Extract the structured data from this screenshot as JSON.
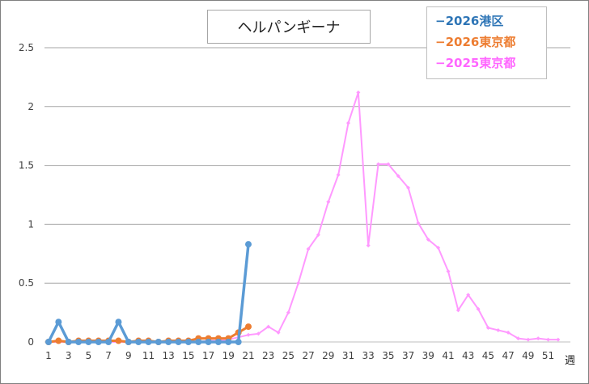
{
  "chart_data": {
    "type": "line",
    "title": "ヘルパンギーナ",
    "xlabel": "週",
    "ylabel": "",
    "ylim": [
      0,
      2.5
    ],
    "xlim": [
      1,
      52
    ],
    "yticks": [
      "0",
      "0.5",
      "1",
      "1.5",
      "2",
      "2.5"
    ],
    "xticks": [
      "1",
      "3",
      "5",
      "7",
      "9",
      "11",
      "13",
      "15",
      "17",
      "19",
      "21",
      "23",
      "25",
      "27",
      "29",
      "31",
      "33",
      "35",
      "37",
      "39",
      "41",
      "43",
      "45",
      "47",
      "49",
      "51"
    ],
    "grid": true,
    "legend_position": "top-right",
    "series": [
      {
        "name": "2026港区",
        "color": "#5b9bd5",
        "x": [
          1,
          2,
          3,
          4,
          5,
          6,
          7,
          8,
          9,
          10,
          11,
          12,
          13,
          14,
          15,
          16,
          17,
          18,
          19,
          20,
          21
        ],
        "values": [
          0,
          0.17,
          0,
          0,
          0,
          0,
          0,
          0.17,
          0,
          0,
          0,
          0,
          0,
          0,
          0,
          0,
          0,
          0,
          0,
          0,
          0.83
        ]
      },
      {
        "name": "2026東京都",
        "color": "#ed7d31",
        "x": [
          1,
          2,
          3,
          4,
          5,
          6,
          7,
          8,
          9,
          10,
          11,
          12,
          13,
          14,
          15,
          16,
          17,
          18,
          19,
          20,
          21
        ],
        "values": [
          0,
          0.01,
          0,
          0.01,
          0.01,
          0.01,
          0.01,
          0.01,
          0,
          0.01,
          0.01,
          0,
          0.01,
          0.01,
          0.01,
          0.03,
          0.03,
          0.03,
          0.03,
          0.08,
          0.13
        ]
      },
      {
        "name": "2025東京都",
        "color": "#ff99ff",
        "x": [
          1,
          2,
          3,
          4,
          5,
          6,
          7,
          8,
          9,
          10,
          11,
          12,
          13,
          14,
          15,
          16,
          17,
          18,
          19,
          20,
          21,
          22,
          23,
          24,
          25,
          26,
          27,
          28,
          29,
          30,
          31,
          32,
          33,
          34,
          35,
          36,
          37,
          38,
          39,
          40,
          41,
          42,
          43,
          44,
          45,
          46,
          47,
          48,
          49,
          50,
          51,
          52
        ],
        "values": [
          0,
          0,
          0,
          0,
          0,
          0,
          0,
          0,
          0,
          0,
          0,
          0,
          0,
          0,
          0,
          0,
          0.01,
          0.01,
          0.02,
          0.04,
          0.06,
          0.07,
          0.13,
          0.08,
          0.25,
          0.5,
          0.79,
          0.91,
          1.19,
          1.42,
          1.86,
          2.12,
          0.82,
          1.51,
          1.51,
          1.41,
          1.31,
          1.01,
          0.87,
          0.8,
          0.6,
          0.27,
          0.4,
          0.28,
          0.12,
          0.1,
          0.08,
          0.03,
          0.02,
          0.03,
          0.02,
          0.02
        ]
      }
    ]
  }
}
